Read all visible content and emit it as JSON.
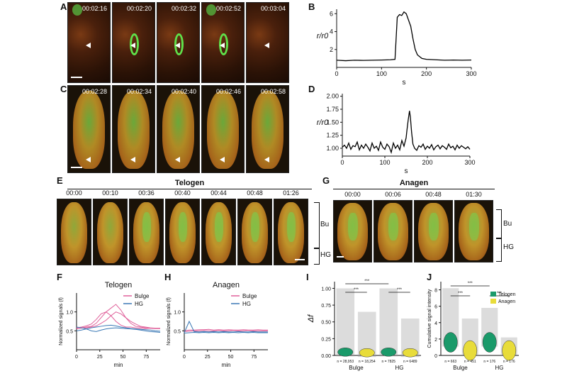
{
  "panel_labels": {
    "A": "A",
    "B": "B",
    "C": "C",
    "D": "D",
    "E": "E",
    "F": "F",
    "G": "G",
    "H": "H",
    "I": "I",
    "J": "J"
  },
  "panel_A": {
    "timestamps": [
      "00:02:16",
      "00:02:20",
      "00:02:32",
      "00:02:52",
      "00:03:04"
    ]
  },
  "panel_C": {
    "timestamps": [
      "00:02:28",
      "00:02:34",
      "00:02:40",
      "00:02:46",
      "00:02:58"
    ]
  },
  "panel_E": {
    "title": "Telogen",
    "timestamps": [
      "00:00",
      "00:10",
      "00:36",
      "00:40",
      "00:44",
      "00:48",
      "01:26"
    ],
    "bracket_labels": {
      "bulge": "Bu",
      "hg": "HG"
    }
  },
  "panel_G": {
    "title": "Anagen",
    "timestamps": [
      "00:00",
      "00:06",
      "00:48",
      "01:30"
    ],
    "bracket_labels": {
      "bulge": "Bu",
      "hg": "HG"
    }
  },
  "colors": {
    "bulge": "#e0609a",
    "hg": "#3a78b5",
    "telogen": "#1a9a6a",
    "anagen": "#e8dc3a",
    "trace": "#000000"
  },
  "chart_data": [
    {
      "id": "B",
      "type": "line",
      "xlabel": "s",
      "ylabel": "r/r0",
      "xlim": [
        0,
        300
      ],
      "ylim": [
        0,
        6.5
      ],
      "xticks": [
        "0",
        "100",
        "200",
        "300"
      ],
      "yticks": [
        "2",
        "4",
        "6"
      ],
      "x": [
        0,
        20,
        40,
        60,
        80,
        100,
        120,
        130,
        135,
        140,
        145,
        150,
        155,
        160,
        165,
        170,
        175,
        180,
        190,
        200,
        220,
        240,
        260,
        280,
        300
      ],
      "y": [
        0.8,
        0.75,
        0.8,
        0.78,
        0.8,
        0.82,
        0.85,
        0.9,
        5.6,
        5.9,
        5.8,
        6.2,
        6.0,
        5.3,
        4.6,
        3.2,
        2.0,
        1.4,
        1.0,
        0.9,
        0.85,
        0.8,
        0.82,
        0.8,
        0.82
      ]
    },
    {
      "id": "D",
      "type": "line",
      "xlabel": "s",
      "ylabel": "r/r0",
      "xlim": [
        0,
        300
      ],
      "ylim": [
        0.85,
        2.05
      ],
      "xticks": [
        "0",
        "100",
        "200",
        "300"
      ],
      "yticks": [
        "1.00",
        "1.25",
        "1.50",
        "1.75",
        "2.00"
      ],
      "x": [
        0,
        5,
        10,
        15,
        20,
        25,
        30,
        35,
        40,
        45,
        50,
        55,
        60,
        65,
        70,
        75,
        80,
        85,
        90,
        95,
        100,
        105,
        110,
        115,
        120,
        125,
        130,
        135,
        140,
        145,
        150,
        152,
        155,
        158,
        160,
        163,
        166,
        170,
        175,
        180,
        185,
        190,
        195,
        200,
        205,
        210,
        215,
        220,
        225,
        230,
        235,
        240,
        245,
        250,
        255,
        260,
        265,
        270,
        275,
        280,
        285,
        290,
        295,
        300
      ],
      "y": [
        1.02,
        1.06,
        1.0,
        1.1,
        0.98,
        1.05,
        1.03,
        1.12,
        0.97,
        1.06,
        1.0,
        1.08,
        1.02,
        0.95,
        1.1,
        1.0,
        1.04,
        0.96,
        1.12,
        1.02,
        0.98,
        1.08,
        1.03,
        0.92,
        1.1,
        1.0,
        1.06,
        0.97,
        1.15,
        1.04,
        1.2,
        1.35,
        1.55,
        1.72,
        1.6,
        1.3,
        1.08,
        1.0,
        0.96,
        1.05,
        1.02,
        1.08,
        0.98,
        1.04,
        1.0,
        1.07,
        0.97,
        1.03,
        1.06,
        0.99,
        1.05,
        1.02,
        0.98,
        1.08,
        1.01,
        1.04,
        0.97,
        1.06,
        1.0,
        1.05,
        1.02,
        0.99,
        1.03,
        0.98
      ]
    },
    {
      "id": "F",
      "type": "line",
      "title": "Telogen",
      "xlabel": "min",
      "ylabel": "Normalized signals (f)",
      "xlim": [
        0,
        90
      ],
      "ylim": [
        0,
        1.5
      ],
      "xticks": [
        "0",
        "25",
        "50",
        "75"
      ],
      "yticks": [
        "0.5",
        "1.0"
      ],
      "legend": [
        "Bulge",
        "HG"
      ],
      "series": [
        {
          "name": "Bulge",
          "values": [
            0.55,
            0.58,
            0.6,
            0.62,
            0.7,
            0.85,
            1.0,
            1.1,
            1.2,
            1.05,
            0.85,
            0.7,
            0.62,
            0.6,
            0.58,
            0.57,
            0.56,
            0.56
          ]
        },
        {
          "name": "Bulge",
          "values": [
            0.58,
            0.6,
            0.63,
            0.68,
            0.8,
            0.95,
            1.0,
            0.9,
            0.75,
            0.65,
            0.6,
            0.6,
            0.58,
            0.57,
            0.56,
            0.57,
            0.56,
            0.56
          ]
        },
        {
          "name": "Bulge",
          "values": [
            0.56,
            0.57,
            0.58,
            0.6,
            0.63,
            0.7,
            0.78,
            0.9,
            1.0,
            0.95,
            0.85,
            0.75,
            0.68,
            0.62,
            0.6,
            0.58,
            0.57,
            0.57
          ]
        },
        {
          "name": "HG",
          "values": [
            0.5,
            0.52,
            0.55,
            0.58,
            0.6,
            0.62,
            0.64,
            0.65,
            0.63,
            0.6,
            0.58,
            0.56,
            0.55,
            0.54,
            0.53,
            0.52,
            0.5,
            0.49
          ]
        },
        {
          "name": "HG",
          "values": [
            0.6,
            0.58,
            0.55,
            0.5,
            0.48,
            0.52,
            0.55,
            0.57,
            0.58,
            0.57,
            0.56,
            0.55,
            0.54,
            0.52,
            0.5,
            0.48,
            0.47,
            0.46
          ]
        }
      ]
    },
    {
      "id": "H",
      "type": "line",
      "title": "Anagen",
      "xlabel": "min",
      "ylabel": "Normalized signals (f)",
      "xlim": [
        0,
        90
      ],
      "ylim": [
        0,
        1.5
      ],
      "xticks": [
        "0",
        "25",
        "50",
        "75"
      ],
      "yticks": [
        "0.5",
        "1.0"
      ],
      "legend": [
        "Bulge",
        "HG"
      ],
      "series": [
        {
          "name": "Bulge",
          "values": [
            0.5,
            0.52,
            0.52,
            0.53,
            0.53,
            0.54,
            0.52,
            0.53,
            0.52,
            0.53,
            0.52,
            0.52,
            0.53,
            0.52,
            0.52,
            0.53,
            0.52,
            0.52
          ]
        },
        {
          "name": "Bulge",
          "values": [
            0.48,
            0.49,
            0.5,
            0.5,
            0.51,
            0.5,
            0.5,
            0.51,
            0.5,
            0.5,
            0.51,
            0.5,
            0.5,
            0.51,
            0.5,
            0.5,
            0.5,
            0.5
          ]
        },
        {
          "name": "HG",
          "values": [
            0.45,
            0.75,
            0.48,
            0.47,
            0.48,
            0.47,
            0.48,
            0.47,
            0.48,
            0.47,
            0.47,
            0.48,
            0.47,
            0.47,
            0.48,
            0.47,
            0.47,
            0.47
          ]
        },
        {
          "name": "HG",
          "values": [
            0.44,
            0.45,
            0.46,
            0.45,
            0.46,
            0.45,
            0.46,
            0.45,
            0.46,
            0.45,
            0.46,
            0.45,
            0.46,
            0.45,
            0.46,
            0.45,
            0.45,
            0.45
          ]
        }
      ]
    },
    {
      "id": "I",
      "type": "violin",
      "ylabel": "Δf",
      "ylim": [
        0,
        1.1
      ],
      "yticks": [
        "0.00",
        "0.25",
        "0.50",
        "0.75",
        "1.00"
      ],
      "groups": [
        "Bulge",
        "HG"
      ],
      "ns": [
        "n = 28,953",
        "n = 18,254",
        "n = 7825",
        "n = 6489"
      ],
      "significance": [
        "***",
        "***",
        "***"
      ],
      "series": [
        {
          "name": "Telogen"
        },
        {
          "name": "Anagen"
        }
      ]
    },
    {
      "id": "J",
      "type": "violin",
      "ylabel": "Cumulative signal intensity",
      "ylim": [
        0,
        9
      ],
      "yticks": [
        "0",
        "2",
        "4",
        "6",
        "8"
      ],
      "groups": [
        "Bulge",
        "HG"
      ],
      "ns": [
        "n = 663",
        "n = 451",
        "n = 176",
        "n = 176"
      ],
      "significance": [
        "***",
        "***",
        "***"
      ],
      "legend": [
        "Telogen",
        "Anagen"
      ]
    }
  ]
}
